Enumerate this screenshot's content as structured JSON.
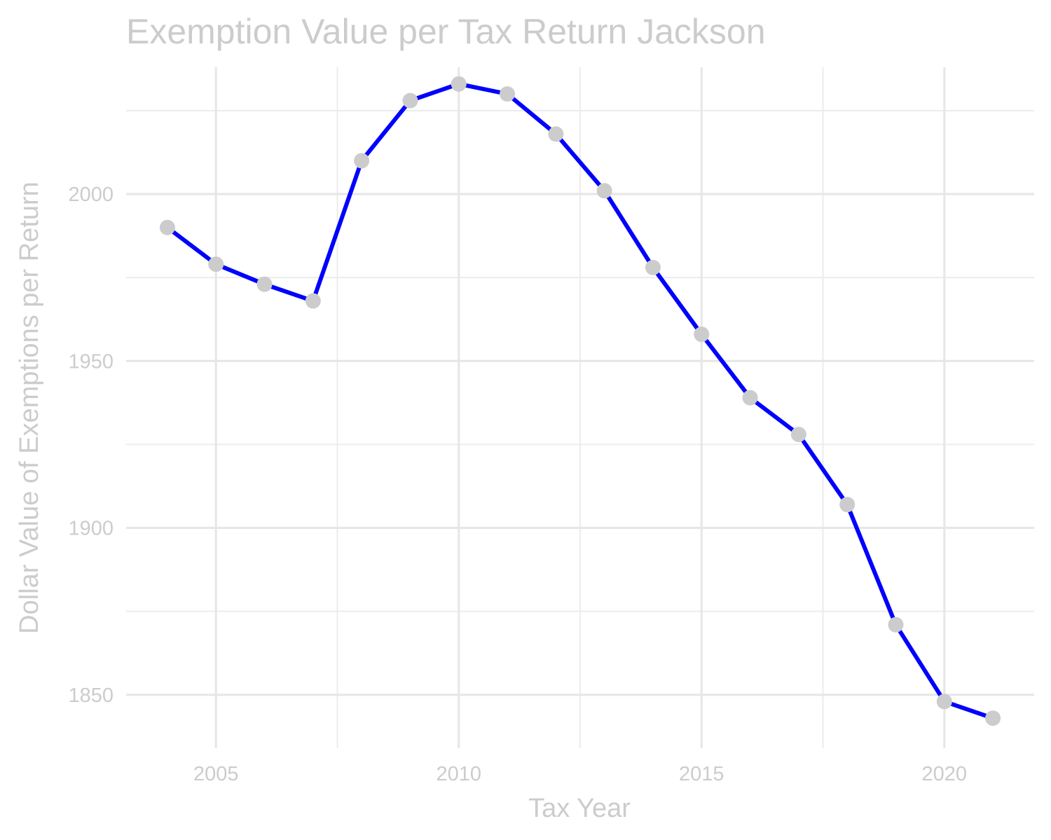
{
  "colors": {
    "line": "#0000ff",
    "point": "#cccccc",
    "text": "#cccccc",
    "grid_major": "#e6e6e6",
    "grid_minor": "#ececec",
    "background": "#ffffff"
  },
  "chart_data": {
    "type": "line",
    "title": "Exemption Value per Tax Return Jackson",
    "xlabel": "Tax Year",
    "ylabel": "Dollar Value of Exemptions per Return",
    "x": [
      2004,
      2005,
      2006,
      2007,
      2008,
      2009,
      2010,
      2011,
      2012,
      2013,
      2014,
      2015,
      2016,
      2017,
      2018,
      2019,
      2020,
      2021
    ],
    "series": [
      {
        "values": [
          1990,
          1979,
          1973,
          1968,
          2010,
          2028,
          2033,
          2030,
          2018,
          2001,
          1978,
          1958,
          1939,
          1928,
          1907,
          1871,
          1848,
          1843
        ]
      }
    ],
    "xlim": [
      2003.15,
      2021.85
    ],
    "ylim": [
      1834,
      2038
    ],
    "x_ticks": [
      2005,
      2010,
      2015,
      2020
    ],
    "x_tick_labels": [
      "2005",
      "2010",
      "2015",
      "2020"
    ],
    "x_minor_ticks": [
      2007.5,
      2012.5,
      2017.5
    ],
    "y_ticks": [
      1850,
      1900,
      1950,
      2000
    ],
    "y_tick_labels": [
      "1850",
      "1900",
      "1950",
      "2000"
    ],
    "y_minor_ticks": [
      1875,
      1925,
      1975,
      2025
    ],
    "grid": true,
    "legend": "none"
  }
}
